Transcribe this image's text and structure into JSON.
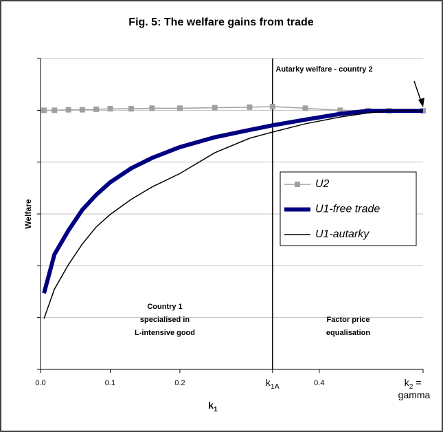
{
  "chart_data": {
    "type": "line",
    "title": "Fig. 5: The welfare gains from trade",
    "x_label": "k1",
    "y_label": "Welfare",
    "x": [
      0.005,
      0.02,
      0.04,
      0.06,
      0.08,
      0.1,
      0.13,
      0.16,
      0.2,
      0.25,
      0.3,
      0.333,
      0.38,
      0.43,
      0.47,
      0.5,
      0.549
    ],
    "series": [
      {
        "name": "U2",
        "color": "#a0a0a0",
        "marker": "square",
        "values": [
          5.0,
          5.0,
          5.01,
          5.01,
          5.02,
          5.03,
          5.03,
          5.04,
          5.04,
          5.05,
          5.06,
          5.07,
          5.04,
          5.0,
          4.99,
          4.99,
          4.99
        ]
      },
      {
        "name": "U1-free trade",
        "color": "#000080",
        "values": [
          1.47,
          2.22,
          2.68,
          3.08,
          3.37,
          3.61,
          3.88,
          4.08,
          4.29,
          4.48,
          4.62,
          4.71,
          4.82,
          4.93,
          4.99,
          4.99,
          4.99
        ]
      },
      {
        "name": "U1-autarky",
        "color": "#000000",
        "values": [
          0.98,
          1.55,
          2.02,
          2.42,
          2.75,
          2.99,
          3.28,
          3.52,
          3.78,
          4.18,
          4.46,
          4.58,
          4.74,
          4.87,
          4.95,
          4.99,
          4.99
        ]
      }
    ],
    "xlim": [
      0,
      0.549
    ],
    "xticks": [
      {
        "value": 0,
        "label": "0.0"
      },
      0.1,
      0.2,
      {
        "value": 0.333,
        "label": "k1A"
      },
      0.4,
      {
        "value": 0.549,
        "label": "k2 = gamma"
      }
    ],
    "ylim": [
      0,
      6
    ],
    "yticks": [
      0,
      1,
      2,
      3,
      4,
      5,
      6
    ],
    "grid": true,
    "annotations": {
      "autarky": "Autarky welfare - country 2",
      "specialised": [
        "Country 1",
        "specialised in",
        "L-intensive good"
      ],
      "fpe": [
        "Factor price",
        "equalisation"
      ]
    }
  }
}
